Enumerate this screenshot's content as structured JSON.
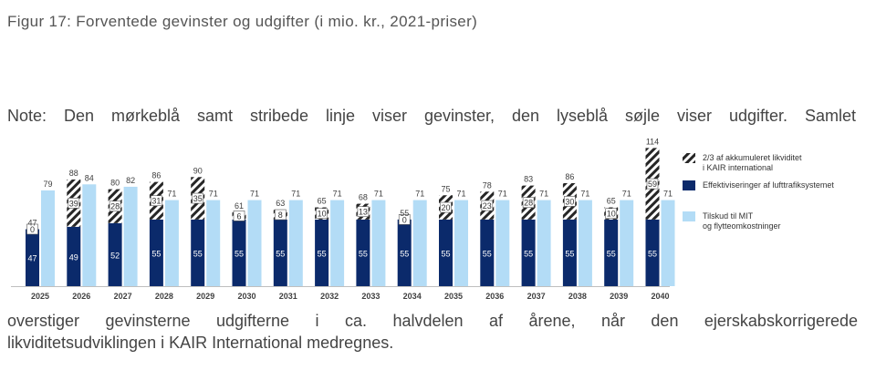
{
  "caption": "Figur 17: Forventede gevinster og udgifter (i mio. kr., 2021-priser)",
  "note": {
    "line1": "Note: Den mørkeblå samt stribede linje viser gevinster, den lyseblå søjle viser udgifter. Samlet",
    "line2": "overstiger gevinsterne udgifterne i ca. halvdelen af årene, når den ejerskabskorrigerede",
    "line3": "likviditetsudviklingen i KAIR International medregnes."
  },
  "chart_data": {
    "type": "bar",
    "categories": [
      "2025",
      "2026",
      "2027",
      "2028",
      "2029",
      "2030",
      "2031",
      "2032",
      "2033",
      "2034",
      "2035",
      "2036",
      "2037",
      "2038",
      "2039",
      "2040"
    ],
    "series": [
      {
        "name": "Effektiviseringer af lufttrafiksystemet",
        "values": [
          47,
          49,
          52,
          55,
          55,
          55,
          55,
          55,
          55,
          55,
          55,
          55,
          55,
          55,
          55,
          55
        ],
        "color": "#0b2a6b"
      },
      {
        "name": "2/3 af akkumuleret likviditet i KAIR international",
        "values": [
          0,
          39,
          28,
          31,
          35,
          6,
          8,
          10,
          13,
          0,
          20,
          23,
          28,
          30,
          10,
          59
        ],
        "color": "#333333"
      },
      {
        "name": "Tilskud til MIT og flytteomkostninger",
        "values": [
          79,
          84,
          82,
          71,
          71,
          71,
          71,
          71,
          71,
          71,
          71,
          71,
          71,
          71,
          71,
          71
        ],
        "color": "#b3dcf6"
      }
    ],
    "gain_totals": [
      47,
      88,
      80,
      86,
      90,
      61,
      63,
      65,
      68,
      55,
      75,
      78,
      83,
      86,
      65,
      114
    ],
    "ylim": [
      0,
      114
    ],
    "legend_position": "right",
    "legend": [
      {
        "text_lines": [
          "2/3 af akkumuleret likviditet",
          "i KAIR international"
        ],
        "style": "hatch"
      },
      {
        "text_lines": [
          "Effektiviseringer af lufttrafiksystemet"
        ],
        "style": "dark"
      },
      {
        "text_lines": [
          "Tilskud til MIT",
          "og flytteomkostninger"
        ],
        "style": "light"
      }
    ]
  }
}
